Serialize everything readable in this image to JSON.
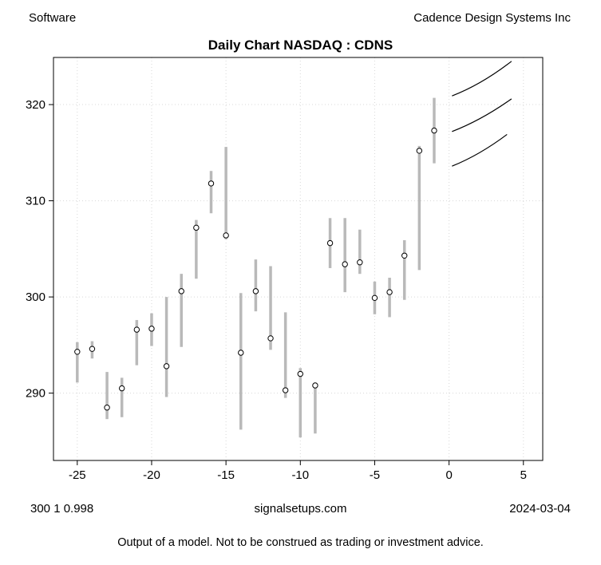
{
  "header": {
    "left": "Software",
    "right": "Cadence Design Systems Inc",
    "title": "Daily Chart NASDAQ : CDNS"
  },
  "footer": {
    "left": "300 1 0.998",
    "center": "signalsetups.com",
    "right": "2024-03-04",
    "disclaimer": "Output of a model.  Not to be construed as trading or investment advice."
  },
  "chart_data": {
    "type": "bar",
    "subtype": "high-low-close-range-bars-with-forecast-fan",
    "title": "Daily Chart NASDAQ : CDNS",
    "xlabel": "",
    "ylabel": "",
    "xlim": [
      -26.6,
      6.3
    ],
    "ylim": [
      283.0,
      324.9
    ],
    "x_ticks": [
      -25,
      -20,
      -15,
      -10,
      -5,
      0,
      5
    ],
    "y_ticks": [
      290,
      300,
      310,
      320
    ],
    "grid": true,
    "legend": "none",
    "colors": {
      "bar": "#b9b9b9",
      "grid": "#d8d8d8",
      "axis": "#000000",
      "point_fill": "#ffffff",
      "point_stroke": "#000000",
      "forecast": "#000000"
    },
    "bars": [
      {
        "x": -25,
        "high": 295.3,
        "low": 291.1,
        "close": 294.3
      },
      {
        "x": -24,
        "high": 295.4,
        "low": 293.6,
        "close": 294.6
      },
      {
        "x": -23,
        "high": 292.2,
        "low": 287.3,
        "close": 288.5
      },
      {
        "x": -22,
        "high": 291.6,
        "low": 287.5,
        "close": 290.5
      },
      {
        "x": -21,
        "high": 297.6,
        "low": 292.9,
        "close": 296.6
      },
      {
        "x": -20,
        "high": 298.3,
        "low": 294.9,
        "close": 296.7
      },
      {
        "x": -19,
        "high": 300.0,
        "low": 289.6,
        "close": 292.8
      },
      {
        "x": -18,
        "high": 302.4,
        "low": 294.8,
        "close": 300.6
      },
      {
        "x": -17,
        "high": 308.0,
        "low": 301.9,
        "close": 307.2
      },
      {
        "x": -16,
        "high": 313.1,
        "low": 308.7,
        "close": 311.8
      },
      {
        "x": -15,
        "high": 315.6,
        "low": 306.0,
        "close": 306.4
      },
      {
        "x": -14,
        "high": 300.4,
        "low": 286.2,
        "close": 294.2
      },
      {
        "x": -13,
        "high": 303.9,
        "low": 298.5,
        "close": 300.6
      },
      {
        "x": -12,
        "high": 303.2,
        "low": 294.5,
        "close": 295.7
      },
      {
        "x": -11,
        "high": 298.4,
        "low": 289.5,
        "close": 290.3
      },
      {
        "x": -10,
        "high": 292.6,
        "low": 285.4,
        "close": 292.0
      },
      {
        "x": -9,
        "high": 291.1,
        "low": 285.8,
        "close": 290.8
      },
      {
        "x": -8,
        "high": 308.2,
        "low": 303.0,
        "close": 305.6
      },
      {
        "x": -7,
        "high": 308.2,
        "low": 300.5,
        "close": 303.4
      },
      {
        "x": -6,
        "high": 307.0,
        "low": 302.4,
        "close": 303.6
      },
      {
        "x": -5,
        "high": 301.6,
        "low": 298.2,
        "close": 299.9
      },
      {
        "x": -4,
        "high": 302.0,
        "low": 297.9,
        "close": 300.5
      },
      {
        "x": -3,
        "high": 305.9,
        "low": 299.7,
        "close": 304.3
      },
      {
        "x": -2,
        "high": 315.7,
        "low": 302.8,
        "close": 315.2
      },
      {
        "x": -1,
        "high": 320.7,
        "low": 313.9,
        "close": 317.3
      }
    ],
    "forecast_lines": [
      {
        "points": [
          [
            0.2,
            320.9
          ],
          [
            2.2,
            322.4
          ],
          [
            4.2,
            324.5
          ]
        ]
      },
      {
        "points": [
          [
            0.2,
            317.2
          ],
          [
            2.2,
            318.65
          ],
          [
            4.2,
            320.6
          ]
        ]
      },
      {
        "points": [
          [
            0.2,
            313.6
          ],
          [
            2.05,
            315.0
          ],
          [
            3.9,
            316.9
          ]
        ]
      }
    ]
  }
}
